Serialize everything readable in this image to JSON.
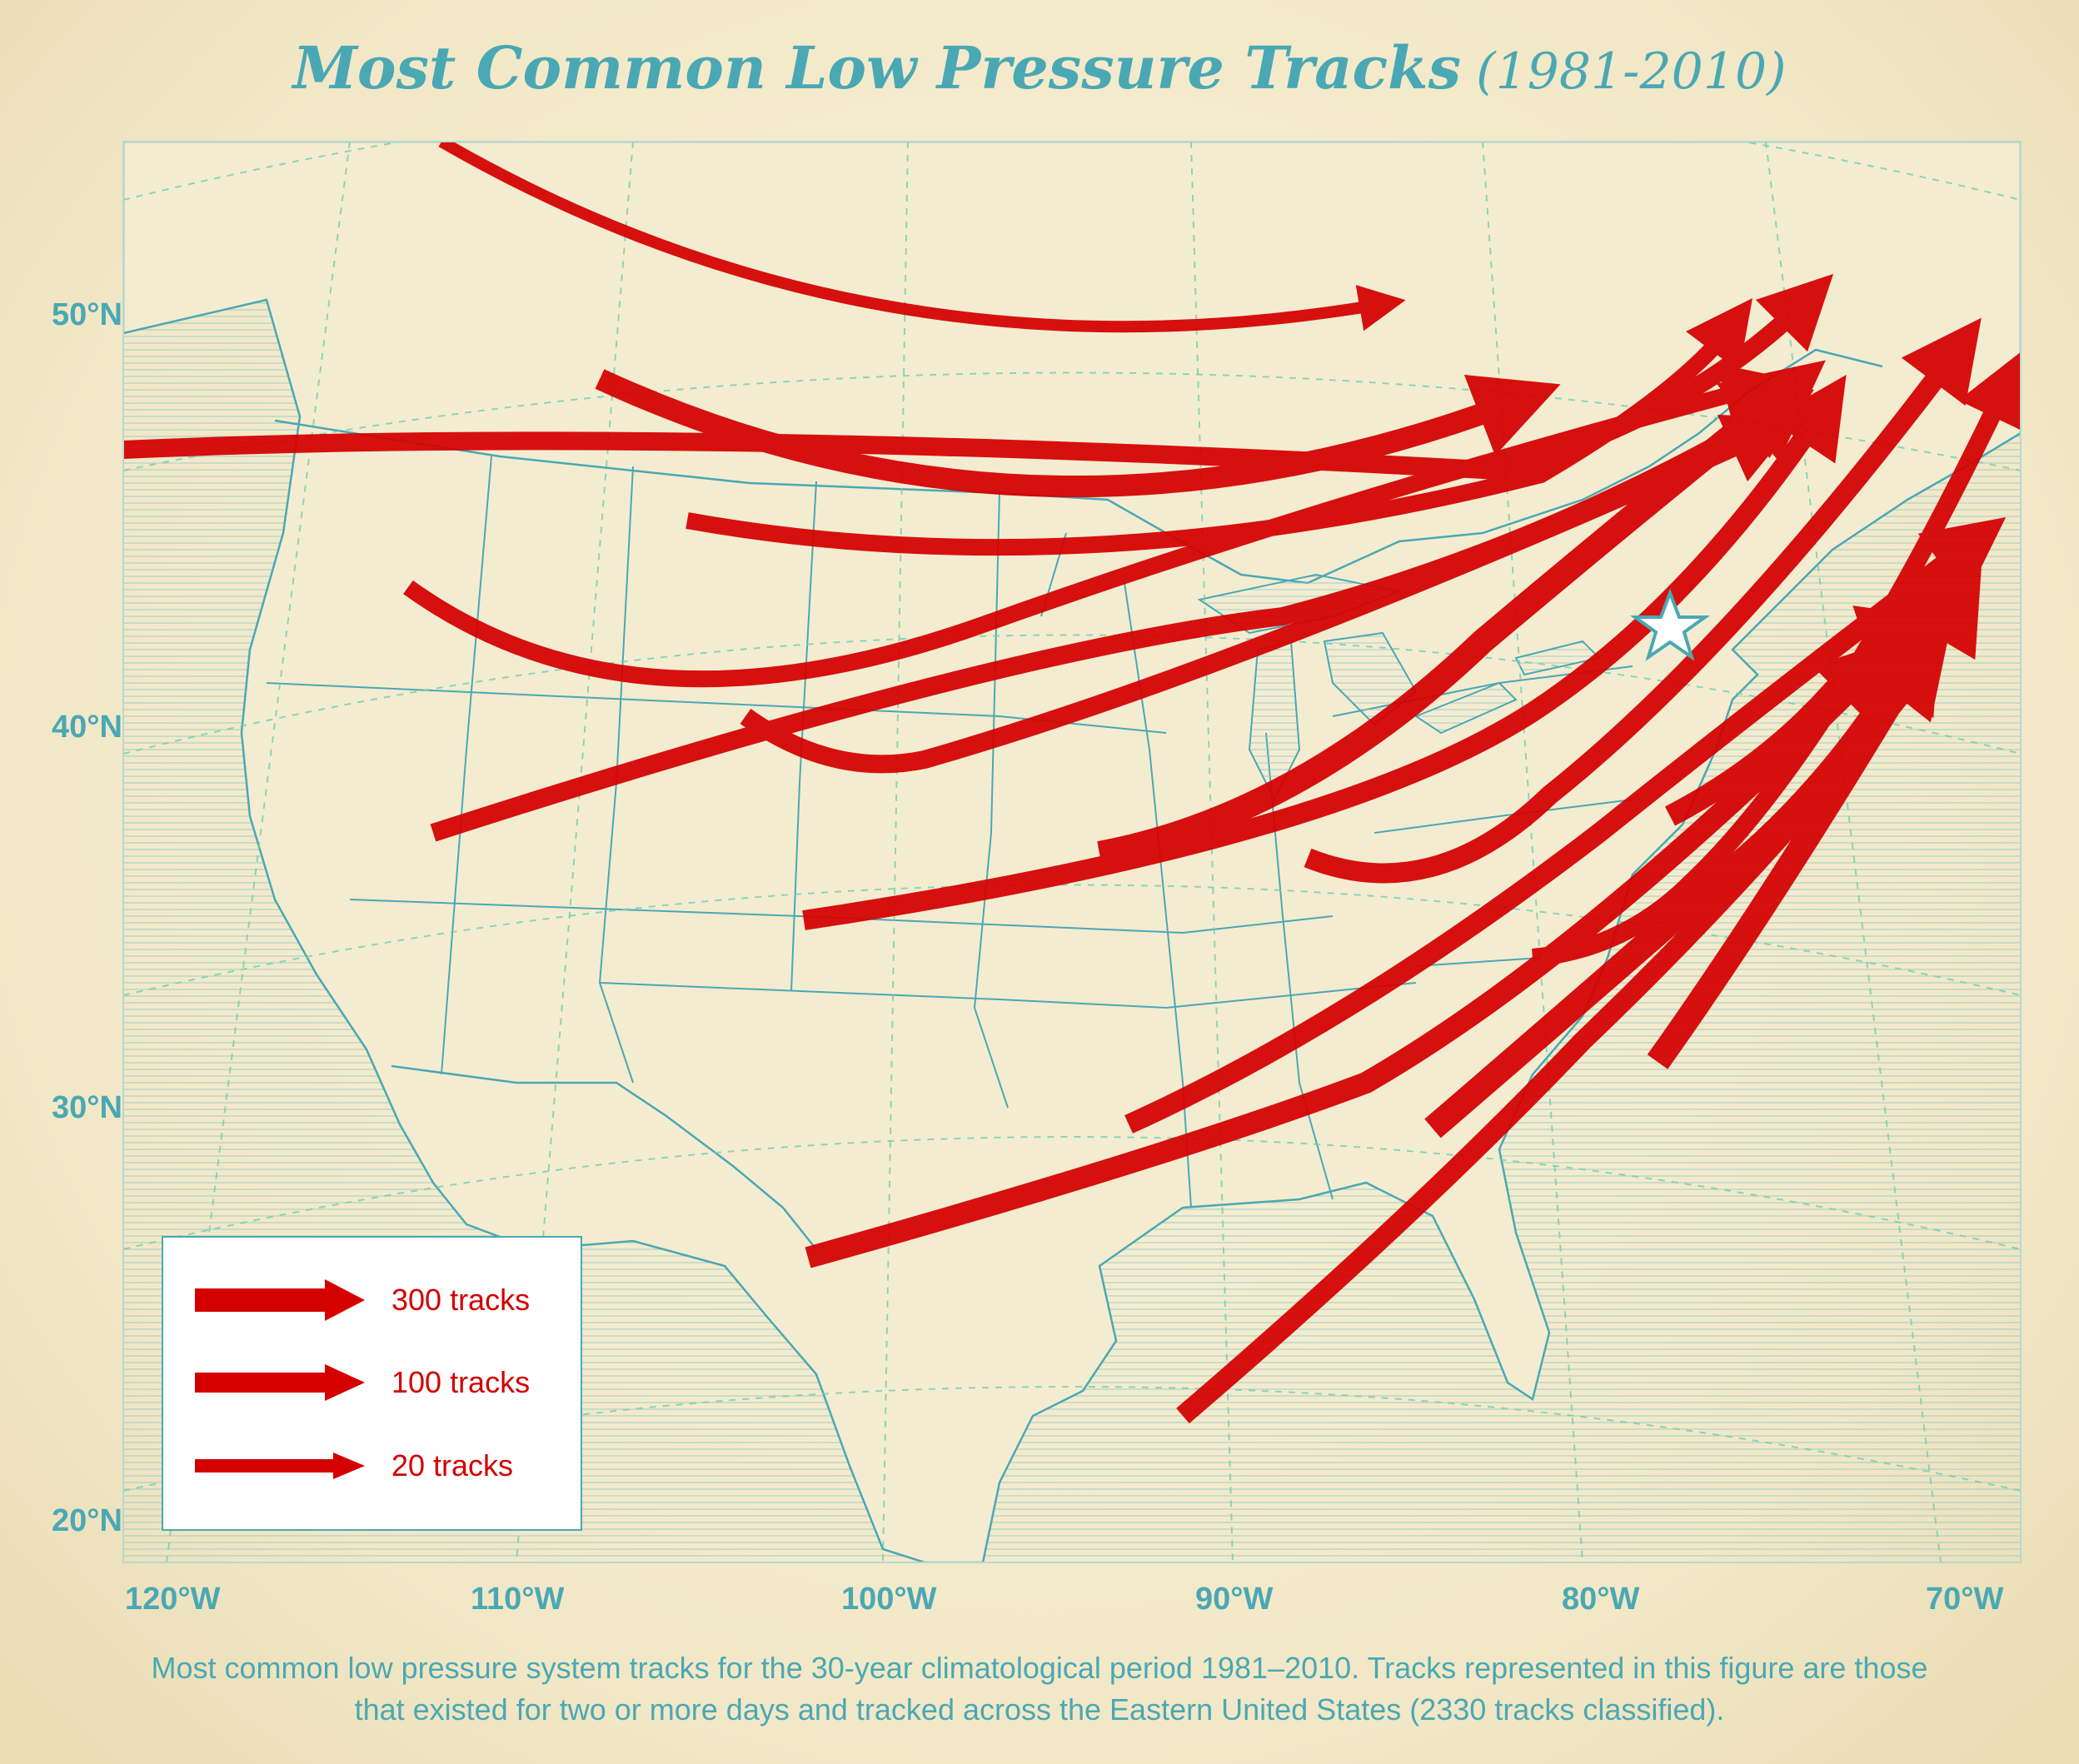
{
  "title": {
    "main": "Most Common Low Pressure Tracks",
    "years": "(1981-2010)"
  },
  "axes": {
    "latitude_labels": [
      "50°N",
      "40°N",
      "30°N",
      "20°N"
    ],
    "longitude_labels": [
      "120°W",
      "110°W",
      "100°W",
      "90°W",
      "80°W",
      "70°W"
    ]
  },
  "legend": {
    "items": [
      {
        "label": "300 tracks",
        "tracks": 300
      },
      {
        "label": "100 tracks",
        "tracks": 100
      },
      {
        "label": "20 tracks",
        "tracks": 20
      }
    ]
  },
  "marker": {
    "icon": "star-icon",
    "color": "#ffffff",
    "outline": "#4aa8b4"
  },
  "colors": {
    "track": "#d40000",
    "grid": "#4aa8b4",
    "background": "#f4ecd1"
  },
  "caption": "Most common low pressure system tracks for the 30-year climatological period 1981–2010. Tracks represented in this figure are those that existed for two or more days and tracked across the Eastern United States (2330 tracks classified)."
}
